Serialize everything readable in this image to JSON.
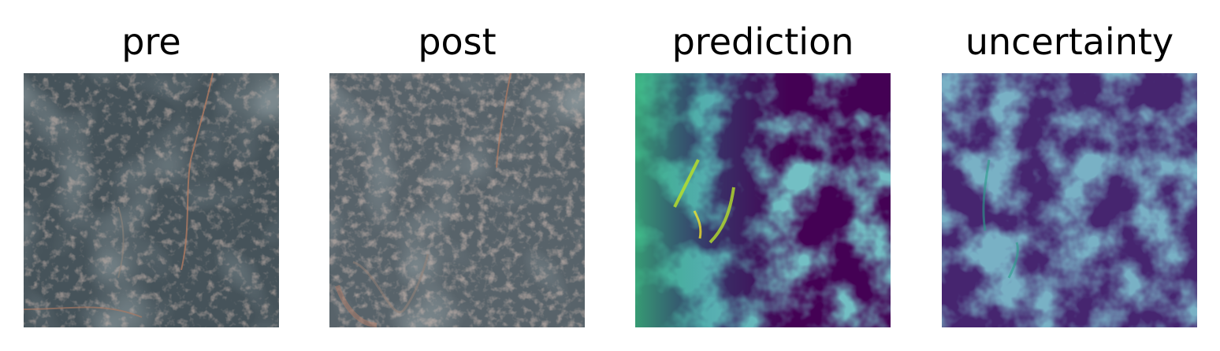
{
  "figure": {
    "panels": [
      {
        "key": "pre",
        "title": "pre",
        "kind": "satellite",
        "colormap": null
      },
      {
        "key": "post",
        "title": "post",
        "kind": "satellite",
        "colormap": null
      },
      {
        "key": "pred",
        "title": "prediction",
        "kind": "heatmap",
        "colormap": "viridis"
      },
      {
        "key": "unc",
        "title": "uncertainty",
        "kind": "heatmap",
        "colormap": "viridis"
      }
    ]
  },
  "colors": {
    "background": "#ffffff",
    "satellite_base": "#3f4b51",
    "satellite_built": "#9a7a6e",
    "viridis_low": "#440154",
    "viridis_mid": "#21908d",
    "viridis_high": "#fde725"
  }
}
